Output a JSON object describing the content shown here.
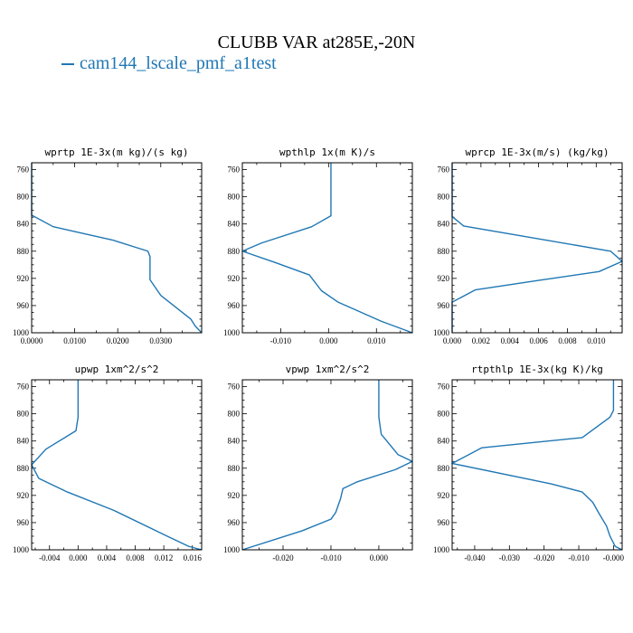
{
  "figure": {
    "title": "CLUBB VAR at285E,-20N",
    "legend": [
      {
        "label": "cam144_lscale_pmf_a1test",
        "color": "#1f77b4"
      }
    ]
  },
  "chart_data": [
    {
      "type": "line",
      "title": "wprtp   1E-3x(m kg)/(s kg)",
      "xlim": [
        0.0,
        0.0395
      ],
      "ylim": [
        1000,
        750
      ],
      "xticks": [
        0.0,
        0.01,
        0.02,
        0.03
      ],
      "xtick_labels": [
        "0.0000",
        "0.0100",
        "0.0200",
        "0.0300"
      ],
      "yticks": [
        760,
        800,
        840,
        880,
        920,
        960,
        1000
      ],
      "ytick_labels": [
        "760",
        "800",
        "840",
        "880",
        "920",
        "960",
        "1000"
      ],
      "series": [
        {
          "name": "cam144_lscale_pmf_a1test",
          "points": [
            [
              0.0,
              750
            ],
            [
              0.0,
              827
            ],
            [
              0.005,
              844
            ],
            [
              0.019,
              864
            ],
            [
              0.027,
              880
            ],
            [
              0.0275,
              888
            ],
            [
              0.0275,
              922
            ],
            [
              0.03,
              945
            ],
            [
              0.034,
              965
            ],
            [
              0.037,
              980
            ],
            [
              0.038,
              990
            ],
            [
              0.0395,
              1000
            ]
          ]
        }
      ]
    },
    {
      "type": "line",
      "title": "wpthlp   1x(m K)/s",
      "xlim": [
        -0.018,
        0.0175
      ],
      "ylim": [
        1000,
        750
      ],
      "xticks": [
        -0.01,
        0.0,
        0.01
      ],
      "xtick_labels": [
        "-0.010",
        "0.000",
        "0.010"
      ],
      "yticks": [
        760,
        800,
        840,
        880,
        920,
        960,
        1000
      ],
      "ytick_labels": [
        "760",
        "800",
        "840",
        "880",
        "920",
        "960",
        "1000"
      ],
      "series": [
        {
          "name": "cam144_lscale_pmf_a1test",
          "points": [
            [
              0.0005,
              750
            ],
            [
              0.0005,
              828
            ],
            [
              -0.0035,
              844
            ],
            [
              -0.014,
              868
            ],
            [
              -0.018,
              880
            ],
            [
              -0.011,
              897
            ],
            [
              -0.004,
              915
            ],
            [
              -0.0015,
              938
            ],
            [
              0.002,
              955
            ],
            [
              0.011,
              983
            ],
            [
              0.0175,
              1000
            ]
          ]
        }
      ]
    },
    {
      "type": "line",
      "title": "wprcp   1E-3x(m/s) (kg/kg)",
      "xlim": [
        0.0,
        0.0118
      ],
      "ylim": [
        1000,
        750
      ],
      "xticks": [
        0.0,
        0.002,
        0.004,
        0.006,
        0.008,
        0.01
      ],
      "xtick_labels": [
        "0.000",
        "0.002",
        "0.004",
        "0.006",
        "0.008",
        "0.010"
      ],
      "yticks": [
        760,
        800,
        840,
        880,
        920,
        960,
        1000
      ],
      "ytick_labels": [
        "760",
        "800",
        "840",
        "880",
        "920",
        "960",
        "1000"
      ],
      "series": [
        {
          "name": "cam144_lscale_pmf_a1test",
          "points": [
            [
              0.0,
              750
            ],
            [
              0.0,
              829
            ],
            [
              0.0008,
              843
            ],
            [
              0.011,
              880
            ],
            [
              0.0118,
              895
            ],
            [
              0.0102,
              910
            ],
            [
              0.006,
              923
            ],
            [
              0.0016,
              937
            ],
            [
              0.0,
              955
            ],
            [
              0.0,
              1000
            ]
          ]
        }
      ]
    },
    {
      "type": "line",
      "title": "upwp   1xm^2/s^2",
      "xlim": [
        -0.0065,
        0.0173
      ],
      "ylim": [
        1000,
        750
      ],
      "xticks": [
        -0.004,
        0.0,
        0.004,
        0.008,
        0.012,
        0.016
      ],
      "xtick_labels": [
        "-0.004",
        "0.000",
        "0.004",
        "0.008",
        "0.012",
        "0.016"
      ],
      "yticks": [
        760,
        800,
        840,
        880,
        920,
        960,
        1000
      ],
      "ytick_labels": [
        "760",
        "800",
        "840",
        "880",
        "920",
        "960",
        "1000"
      ],
      "series": [
        {
          "name": "cam144_lscale_pmf_a1test",
          "points": [
            [
              0.0,
              750
            ],
            [
              0.0,
              805
            ],
            [
              -0.0003,
              825
            ],
            [
              -0.0045,
              852
            ],
            [
              -0.0065,
              875
            ],
            [
              -0.0055,
              895
            ],
            [
              -0.0015,
              915
            ],
            [
              0.005,
              942
            ],
            [
              0.0125,
              980
            ],
            [
              0.0155,
              995
            ],
            [
              0.0173,
              1000
            ]
          ]
        }
      ]
    },
    {
      "type": "line",
      "title": "vpwp   1xm^2/s^2",
      "xlim": [
        -0.0285,
        0.007
      ],
      "ylim": [
        1000,
        750
      ],
      "xticks": [
        -0.02,
        -0.01,
        0.0
      ],
      "xtick_labels": [
        "-0.020",
        "-0.010",
        "0.000"
      ],
      "yticks": [
        760,
        800,
        840,
        880,
        920,
        960,
        1000
      ],
      "ytick_labels": [
        "760",
        "800",
        "840",
        "880",
        "920",
        "960",
        "1000"
      ],
      "series": [
        {
          "name": "cam144_lscale_pmf_a1test",
          "points": [
            [
              0.0,
              750
            ],
            [
              0.0,
              805
            ],
            [
              0.0005,
              830
            ],
            [
              0.004,
              860
            ],
            [
              0.007,
              870
            ],
            [
              0.0035,
              882
            ],
            [
              -0.0045,
              900
            ],
            [
              -0.0075,
              910
            ],
            [
              -0.008,
              925
            ],
            [
              -0.009,
              945
            ],
            [
              -0.01,
              955
            ],
            [
              -0.016,
              972
            ],
            [
              -0.0285,
              1000
            ]
          ]
        }
      ]
    },
    {
      "type": "line",
      "title": "rtpthlp   1E-3x(kg K)/kg",
      "xlim": [
        -0.0465,
        0.0025
      ],
      "ylim": [
        1000,
        750
      ],
      "xticks": [
        -0.04,
        -0.03,
        -0.02,
        -0.01,
        0.0
      ],
      "xtick_labels": [
        "-0.040",
        "-0.030",
        "-0.020",
        "-0.010",
        "-0.000"
      ],
      "yticks": [
        760,
        800,
        840,
        880,
        920,
        960,
        1000
      ],
      "ytick_labels": [
        "760",
        "800",
        "840",
        "880",
        "920",
        "960",
        "1000"
      ],
      "series": [
        {
          "name": "cam144_lscale_pmf_a1test",
          "points": [
            [
              0.0,
              750
            ],
            [
              0.0,
              795
            ],
            [
              -0.001,
              805
            ],
            [
              -0.009,
              835
            ],
            [
              -0.038,
              850
            ],
            [
              -0.0465,
              873
            ],
            [
              -0.018,
              903
            ],
            [
              -0.009,
              915
            ],
            [
              -0.006,
              930
            ],
            [
              -0.004,
              948
            ],
            [
              -0.002,
              965
            ],
            [
              -0.001,
              980
            ],
            [
              0.0005,
              995
            ],
            [
              0.0025,
              1000
            ]
          ]
        }
      ]
    }
  ]
}
